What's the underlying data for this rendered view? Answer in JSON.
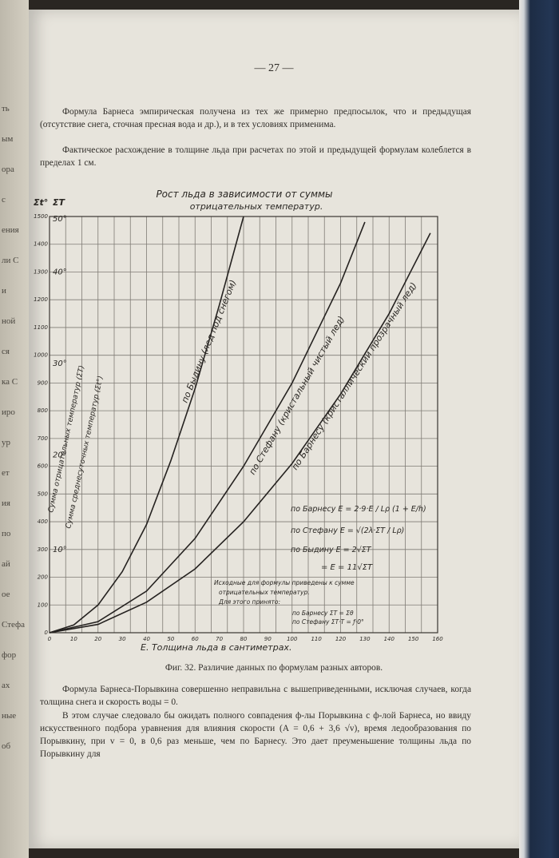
{
  "page_number": "— 27 —",
  "left_page_fragments": [
    "ть",
    "ым",
    "ора",
    "с",
    "ения",
    "ли С",
    "и",
    "ной",
    "ся",
    "ка С",
    "иро",
    "ур",
    "ет",
    "ия",
    "по",
    "ай",
    "ое",
    "Стефа",
    "фор",
    "ах",
    "ные",
    "об"
  ],
  "paragraphs": [
    "Формула Барнеса эмпирическая получена из тех же примерно предпосылок, что и предыдущая (отсутствие снега, сточная пресная вода и др.), и в тех условиях применима.",
    "Фактическое расхождение в толщине льда при расчетах по этой и предыдущей формулам колеблется в пределах 1 см.",
    "Формула Барнеса-Порывкина совершенно неправильна с вышеприведенными, исключая случаев, когда толщина снега и скорость воды = 0.",
    "В этом случае следовало бы ожидать полного совпадения ф-лы Порывкина с ф-лой Барнеса, но ввиду искусственного подбора уравнения для влияния скорости (A = 0,6 + 3,6 √v), время ледообразования по Порывкину, при v = 0, в 0,6 раз меньше, чем по Барнесу. Это дает преуменьшение толщины льда по Порывкину для"
  ],
  "caption": "Фиг. 32. Различие данных по формулам разных авторов.",
  "chart_data": {
    "type": "line",
    "title": "Рост льда в зависимости от суммы",
    "subtitle": "отрицательных температур.",
    "xlabel": "Е. Толщина льда в сантиметрах.",
    "ylabel": "Сумма отрицательных температур (ΣT)",
    "ylabel2": "Сумма среднесуточных температур (Σt°)",
    "y_header_left": "Σt°",
    "y_header_right": "ΣT",
    "xlim": [
      0,
      160
    ],
    "ylim": [
      0,
      1500
    ],
    "x_ticks": [
      0,
      10,
      20,
      30,
      40,
      50,
      60,
      70,
      80,
      90,
      100,
      110,
      120,
      130,
      140,
      150,
      160
    ],
    "y_ticks": [
      0,
      100,
      200,
      300,
      400,
      500,
      600,
      700,
      800,
      900,
      1000,
      1100,
      1200,
      1300,
      1400,
      1500
    ],
    "y2_ticks": [
      {
        "label": "10°",
        "value": 300
      },
      {
        "label": "20°",
        "value": 640
      },
      {
        "label": "30°",
        "value": 970
      },
      {
        "label": "40°",
        "value": 1300
      },
      {
        "label": "50°",
        "value": 1640
      }
    ],
    "grid": true,
    "series": [
      {
        "name": "по Быдину (лед под снегом)",
        "x": [
          0,
          10,
          20,
          30,
          40,
          50,
          60,
          70,
          80
        ],
        "y": [
          0,
          28,
          100,
          220,
          390,
          620,
          880,
          1180,
          1500
        ]
      },
      {
        "name": "по Стефану (кристальный чистый лед)",
        "x": [
          0,
          20,
          40,
          60,
          80,
          100,
          120,
          130
        ],
        "y": [
          0,
          40,
          150,
          340,
          600,
          900,
          1260,
          1480
        ]
      },
      {
        "name": "по Барнесу (кристаллический прозрачный лед)",
        "x": [
          0,
          20,
          40,
          60,
          80,
          100,
          120,
          140,
          157
        ],
        "y": [
          0,
          30,
          110,
          230,
          400,
          610,
          860,
          1150,
          1440
        ]
      }
    ],
    "annotations": {
      "formulas": [
        "по Барнесу  E = 2·9·E / Lρ (1 + E/h)",
        "по Стефану  E = √(2λ·ΣT / Lρ)",
        "по Быдину  E = 2√ΣT",
        "= E = 11√ΣT"
      ],
      "note": [
        "Исходные для формулы приведены к сумме",
        "отрицательных температур.",
        "Для этого принято:"
      ],
      "conditions": [
        "по Барнесу  ΣT = Σθ",
        "по Стефану  ΣT·T = ƒ·0°"
      ]
    }
  }
}
